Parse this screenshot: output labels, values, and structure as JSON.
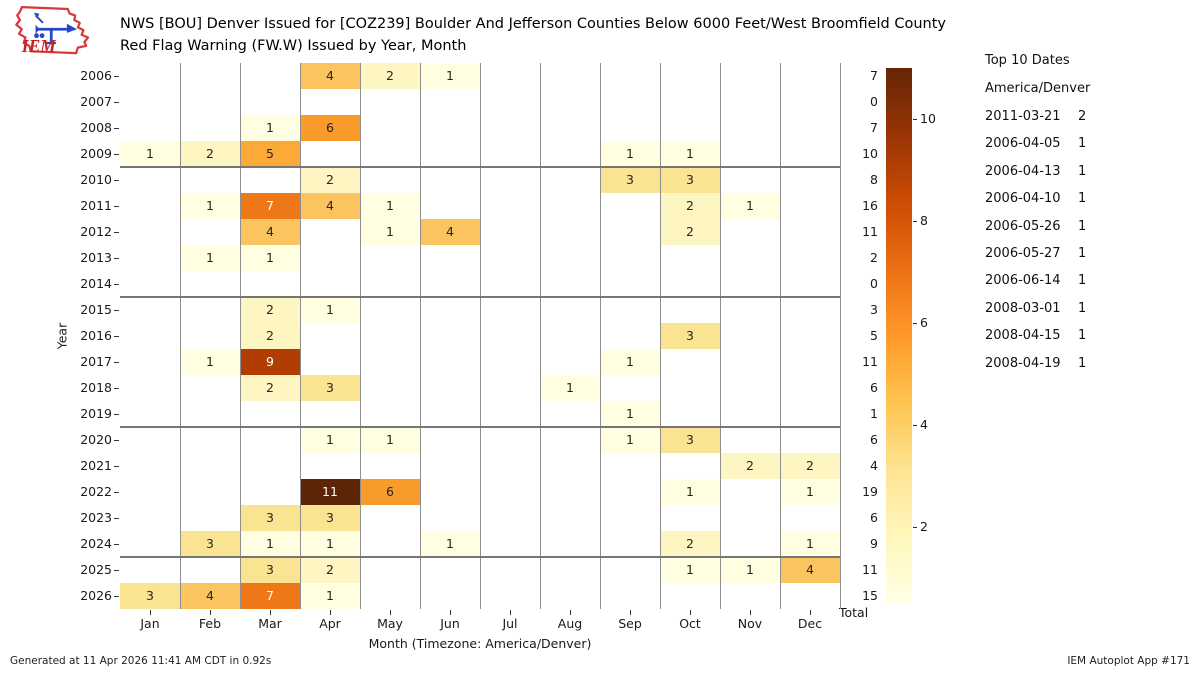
{
  "header": {
    "title_line1": "NWS [BOU] Denver Issued for [COZ239] Boulder And Jefferson Counties Below 6000 Feet/West Broomfield County",
    "title_line2": "Red Flag Warning (FW.W) Issued by Year, Month",
    "logo_text": "IEM"
  },
  "chart_data": {
    "type": "heatmap",
    "title": "NWS [BOU] Denver Issued for [COZ239] Boulder And Jefferson Counties Below 6000 Feet/West Broomfield County Red Flag Warning (FW.W) Issued by Year, Month",
    "xlabel": "Month (Timezone: America/Denver)",
    "ylabel": "Year",
    "total_label": "Total",
    "x_categories": [
      "Jan",
      "Feb",
      "Mar",
      "Apr",
      "May",
      "Jun",
      "Jul",
      "Aug",
      "Sep",
      "Oct",
      "Nov",
      "Dec"
    ],
    "rows": [
      {
        "year": 2006,
        "values": [
          null,
          null,
          null,
          4,
          2,
          1,
          null,
          null,
          null,
          null,
          null,
          null
        ],
        "total": 7
      },
      {
        "year": 2007,
        "values": [
          null,
          null,
          null,
          null,
          null,
          null,
          null,
          null,
          null,
          null,
          null,
          null
        ],
        "total": 0
      },
      {
        "year": 2008,
        "values": [
          null,
          null,
          1,
          6,
          null,
          null,
          null,
          null,
          null,
          null,
          null,
          null
        ],
        "total": 7
      },
      {
        "year": 2009,
        "values": [
          1,
          2,
          5,
          null,
          null,
          null,
          null,
          null,
          1,
          1,
          null,
          null
        ],
        "total": 10
      },
      {
        "year": 2010,
        "values": [
          null,
          null,
          null,
          2,
          null,
          null,
          null,
          null,
          3,
          3,
          null,
          null
        ],
        "total": 8
      },
      {
        "year": 2011,
        "values": [
          null,
          1,
          7,
          4,
          1,
          null,
          null,
          null,
          null,
          2,
          1,
          null
        ],
        "total": 16
      },
      {
        "year": 2012,
        "values": [
          null,
          null,
          4,
          null,
          1,
          4,
          null,
          null,
          null,
          2,
          null,
          null
        ],
        "total": 11
      },
      {
        "year": 2013,
        "values": [
          null,
          1,
          1,
          null,
          null,
          null,
          null,
          null,
          null,
          null,
          null,
          null
        ],
        "total": 2
      },
      {
        "year": 2014,
        "values": [
          null,
          null,
          null,
          null,
          null,
          null,
          null,
          null,
          null,
          null,
          null,
          null
        ],
        "total": 0
      },
      {
        "year": 2015,
        "values": [
          null,
          null,
          2,
          1,
          null,
          null,
          null,
          null,
          null,
          null,
          null,
          null
        ],
        "total": 3
      },
      {
        "year": 2016,
        "values": [
          null,
          null,
          2,
          null,
          null,
          null,
          null,
          null,
          null,
          3,
          null,
          null
        ],
        "total": 5
      },
      {
        "year": 2017,
        "values": [
          null,
          1,
          9,
          null,
          null,
          null,
          null,
          null,
          1,
          null,
          null,
          null
        ],
        "total": 11
      },
      {
        "year": 2018,
        "values": [
          null,
          null,
          2,
          3,
          null,
          null,
          null,
          1,
          null,
          null,
          null,
          null
        ],
        "total": 6
      },
      {
        "year": 2019,
        "values": [
          null,
          null,
          null,
          null,
          null,
          null,
          null,
          null,
          1,
          null,
          null,
          null
        ],
        "total": 1
      },
      {
        "year": 2020,
        "values": [
          null,
          null,
          null,
          1,
          1,
          null,
          null,
          null,
          1,
          3,
          null,
          null
        ],
        "total": 6
      },
      {
        "year": 2021,
        "values": [
          null,
          null,
          null,
          null,
          null,
          null,
          null,
          null,
          null,
          null,
          2,
          2
        ],
        "total": 4
      },
      {
        "year": 2022,
        "values": [
          null,
          null,
          null,
          11,
          6,
          null,
          null,
          null,
          null,
          1,
          null,
          1
        ],
        "total": 19
      },
      {
        "year": 2023,
        "values": [
          null,
          null,
          3,
          3,
          null,
          null,
          null,
          null,
          null,
          null,
          null,
          null
        ],
        "total": 6
      },
      {
        "year": 2024,
        "values": [
          null,
          3,
          1,
          1,
          null,
          1,
          null,
          null,
          null,
          2,
          null,
          1
        ],
        "total": 9
      },
      {
        "year": 2025,
        "values": [
          null,
          null,
          3,
          2,
          null,
          null,
          null,
          null,
          null,
          1,
          1,
          4
        ],
        "total": 11
      },
      {
        "year": 2026,
        "values": [
          3,
          4,
          7,
          1,
          null,
          null,
          null,
          null,
          null,
          null,
          null,
          null
        ],
        "total": 15
      }
    ],
    "separators_after_years": [
      2009,
      2014,
      2019,
      2024
    ],
    "value_colors": {
      "1": "#fffee1",
      "2": "#fdf6c2",
      "3": "#fbe491",
      "4": "#fcc45f",
      "5": "#fbaa38",
      "6": "#f99b2b",
      "7": "#ee7818",
      "9": "#b23d03",
      "11": "#5c2505"
    },
    "white_text_min": 7,
    "colorbar": {
      "ticks": [
        2,
        4,
        6,
        8,
        10
      ],
      "top_value": 11,
      "bottom_value": 0.5,
      "gradient_top_to_bottom": [
        "#662506",
        "#993404",
        "#cc4c02",
        "#ec7014",
        "#fe9929",
        "#fec44f",
        "#fee391",
        "#fff7bc",
        "#ffffe5"
      ]
    }
  },
  "top10": {
    "title": "Top 10 Dates",
    "timezone": "America/Denver",
    "entries": [
      {
        "date": "2011-03-21",
        "count": 2
      },
      {
        "date": "2006-04-05",
        "count": 1
      },
      {
        "date": "2006-04-13",
        "count": 1
      },
      {
        "date": "2006-04-10",
        "count": 1
      },
      {
        "date": "2006-05-26",
        "count": 1
      },
      {
        "date": "2006-05-27",
        "count": 1
      },
      {
        "date": "2006-06-14",
        "count": 1
      },
      {
        "date": "2008-03-01",
        "count": 1
      },
      {
        "date": "2008-04-15",
        "count": 1
      },
      {
        "date": "2008-04-19",
        "count": 1
      }
    ]
  },
  "footer": {
    "left": "Generated at 11 Apr 2026 11:41 AM CDT in 0.92s",
    "right": "IEM Autoplot App #171"
  },
  "branding": {
    "logo_red": "#d9373c",
    "logo_blue": "#2746c9",
    "logo_text_red": "#c3242a"
  }
}
